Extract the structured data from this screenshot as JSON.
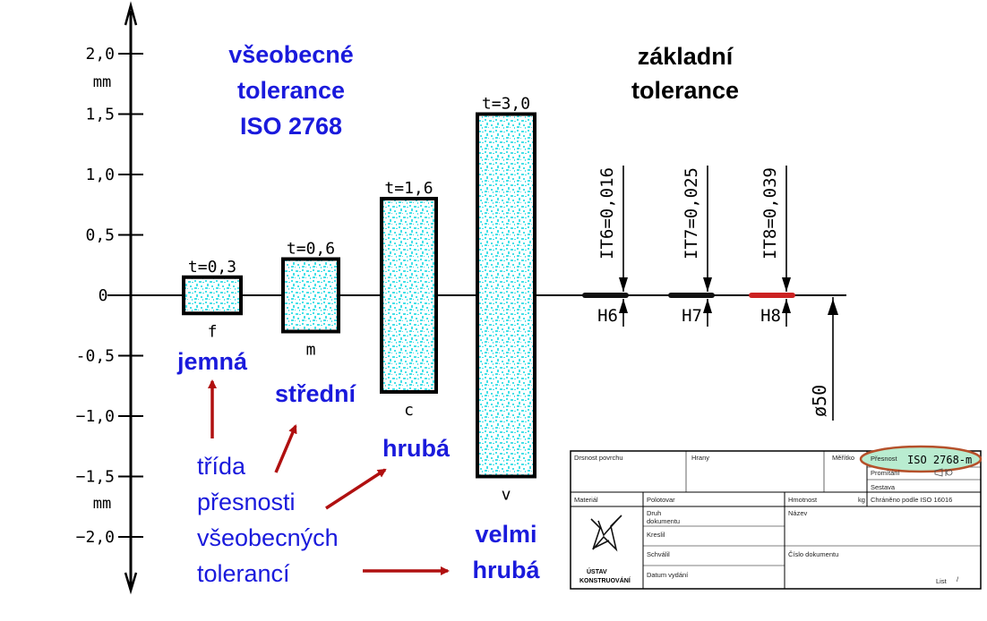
{
  "axis": {
    "unit_top": "mm",
    "unit_bottom": "mm",
    "ticks": [
      {
        "value": 2.0,
        "label": "2,0"
      },
      {
        "value": 1.5,
        "label": "1,5"
      },
      {
        "value": 1.0,
        "label": "1,0"
      },
      {
        "value": 0.5,
        "label": "0,5"
      },
      {
        "value": 0,
        "label": "0"
      },
      {
        "value": -0.5,
        "label": "-0,5"
      },
      {
        "value": -1.0,
        "label": "−1,0"
      },
      {
        "value": -1.5,
        "label": "−1,5"
      },
      {
        "value": -2.0,
        "label": "−2,0"
      }
    ]
  },
  "left_heading": [
    "všeobecné",
    "tolerance",
    "ISO 2768"
  ],
  "right_heading": [
    "základní",
    "tolerance"
  ],
  "general_classes": [
    {
      "code": "f",
      "t_label": "t=0,3",
      "upper": 0.15,
      "lower": -0.15,
      "name_lines": [
        "jemná"
      ]
    },
    {
      "code": "m",
      "t_label": "t=0,6",
      "upper": 0.3,
      "lower": -0.3,
      "name_lines": [
        "střední"
      ]
    },
    {
      "code": "c",
      "t_label": "t=1,6",
      "upper": 0.8,
      "lower": -0.8,
      "name_lines": [
        "hrubá"
      ]
    },
    {
      "code": "v",
      "t_label": "t=3,0",
      "upper": 1.5,
      "lower": -1.5,
      "name_lines": [
        "velmi",
        "hrubá"
      ]
    }
  ],
  "basic_tolerances": [
    {
      "grade": "H6",
      "it_label": "IT6=0,016",
      "color": "#111111"
    },
    {
      "grade": "H7",
      "it_label": "IT7=0,025",
      "color": "#111111"
    },
    {
      "grade": "H8",
      "it_label": "IT8=0,039",
      "color": "#cc2222"
    }
  ],
  "diameter_label": "ø50",
  "caption_lines": [
    "třída",
    "přesnosti",
    "všeobecných",
    "tolerancí"
  ],
  "title_block": {
    "surface": "Drsnost povrchu",
    "edges": "Hrany",
    "scale": "Měřítko",
    "precision_label": "Přesnost",
    "precision_value": "ISO 2768-m",
    "projection": "Promítání",
    "assembly": "Sestava",
    "material": "Materiál",
    "semi_product": "Polotovar",
    "mass": "Hmotnost",
    "mass_unit": "kg",
    "protected": "Chráněno podle ISO 16016",
    "doc_type_1": "Druh",
    "doc_type_2": "dokumentu",
    "name": "Název",
    "drawn": "Kreslil",
    "approved": "Schválil",
    "doc_number": "Číslo dokumentu",
    "issue_date": "Datum vydání",
    "sheet": "List",
    "sheet_mark": "/",
    "institute_1": "ÚSTAV",
    "institute_2": "KONSTRUOVÁNÍ"
  },
  "colors": {
    "heading_blue": "#1a1adc",
    "arrow_red": "#b01010",
    "fill_cyan": "#45e0e8",
    "highlight_green": "#b9ecd0",
    "highlight_ring": "#b5502a"
  }
}
